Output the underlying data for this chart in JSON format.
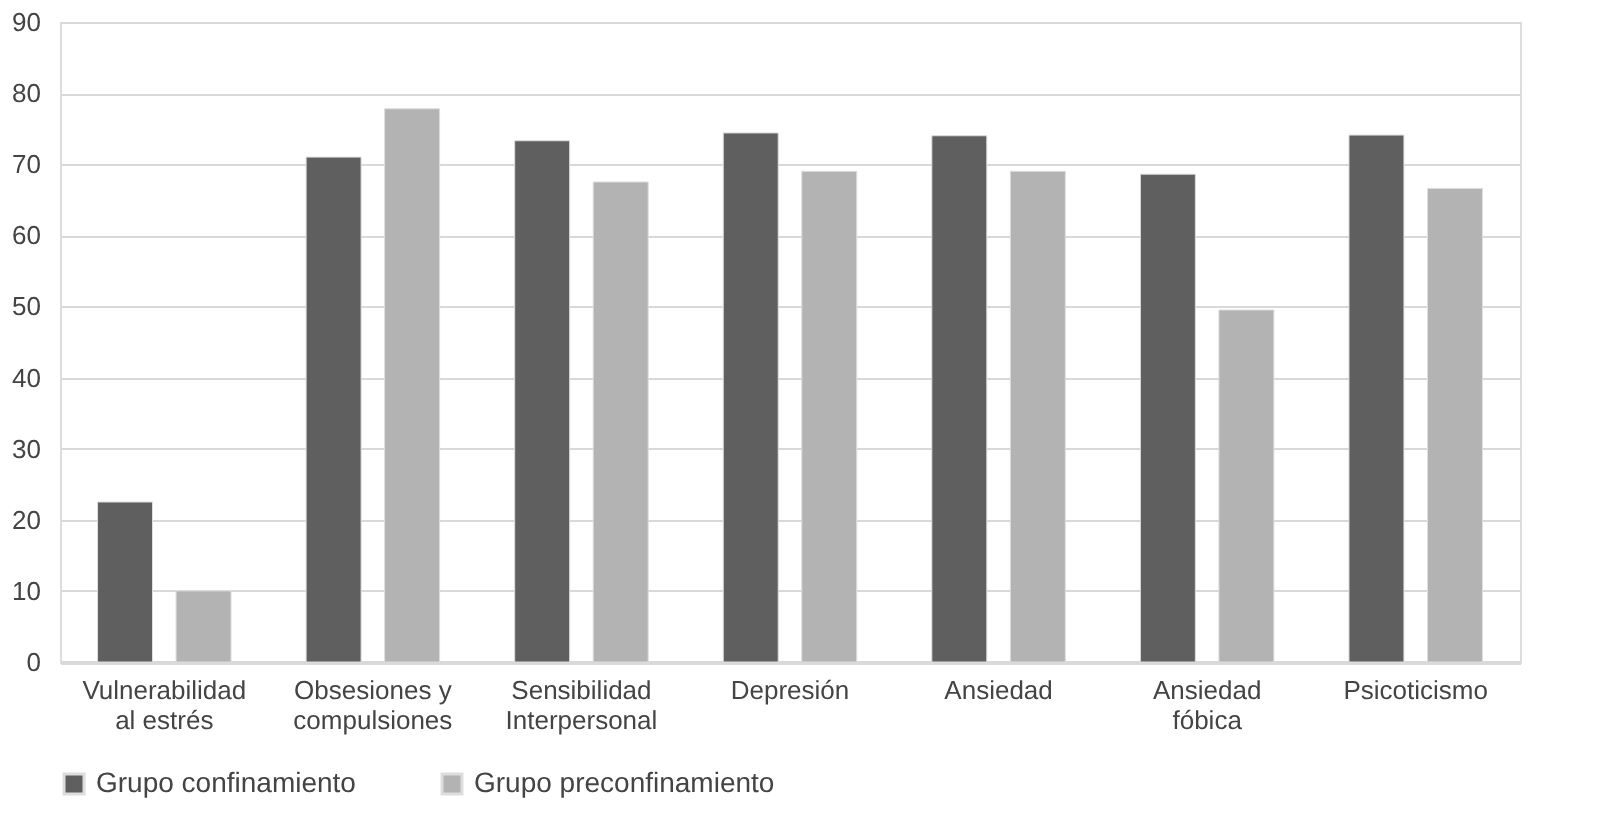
{
  "chart_data": {
    "type": "bar",
    "categories": [
      "Vulnerabilidad al estrés",
      "Obsesiones y compulsiones",
      "Sensibilidad Interpersonal",
      "Depresión",
      "Ansiedad",
      "Ansiedad fóbica",
      "Psicoticismo"
    ],
    "series": [
      {
        "name": "Grupo confinamiento",
        "color": "#5f5f5f",
        "values": [
          22.5,
          71,
          73.3,
          74.4,
          74,
          68.6,
          74.1
        ]
      },
      {
        "name": "Grupo preconfinamiento",
        "color": "#b3b3b3",
        "values": [
          10,
          77.8,
          67.5,
          69,
          69,
          49.5,
          66.6
        ]
      }
    ],
    "ylim": [
      0,
      90
    ],
    "yticks": [
      0,
      10,
      20,
      30,
      40,
      50,
      60,
      70,
      80,
      90
    ],
    "grid": "y",
    "legend": "bottom"
  }
}
